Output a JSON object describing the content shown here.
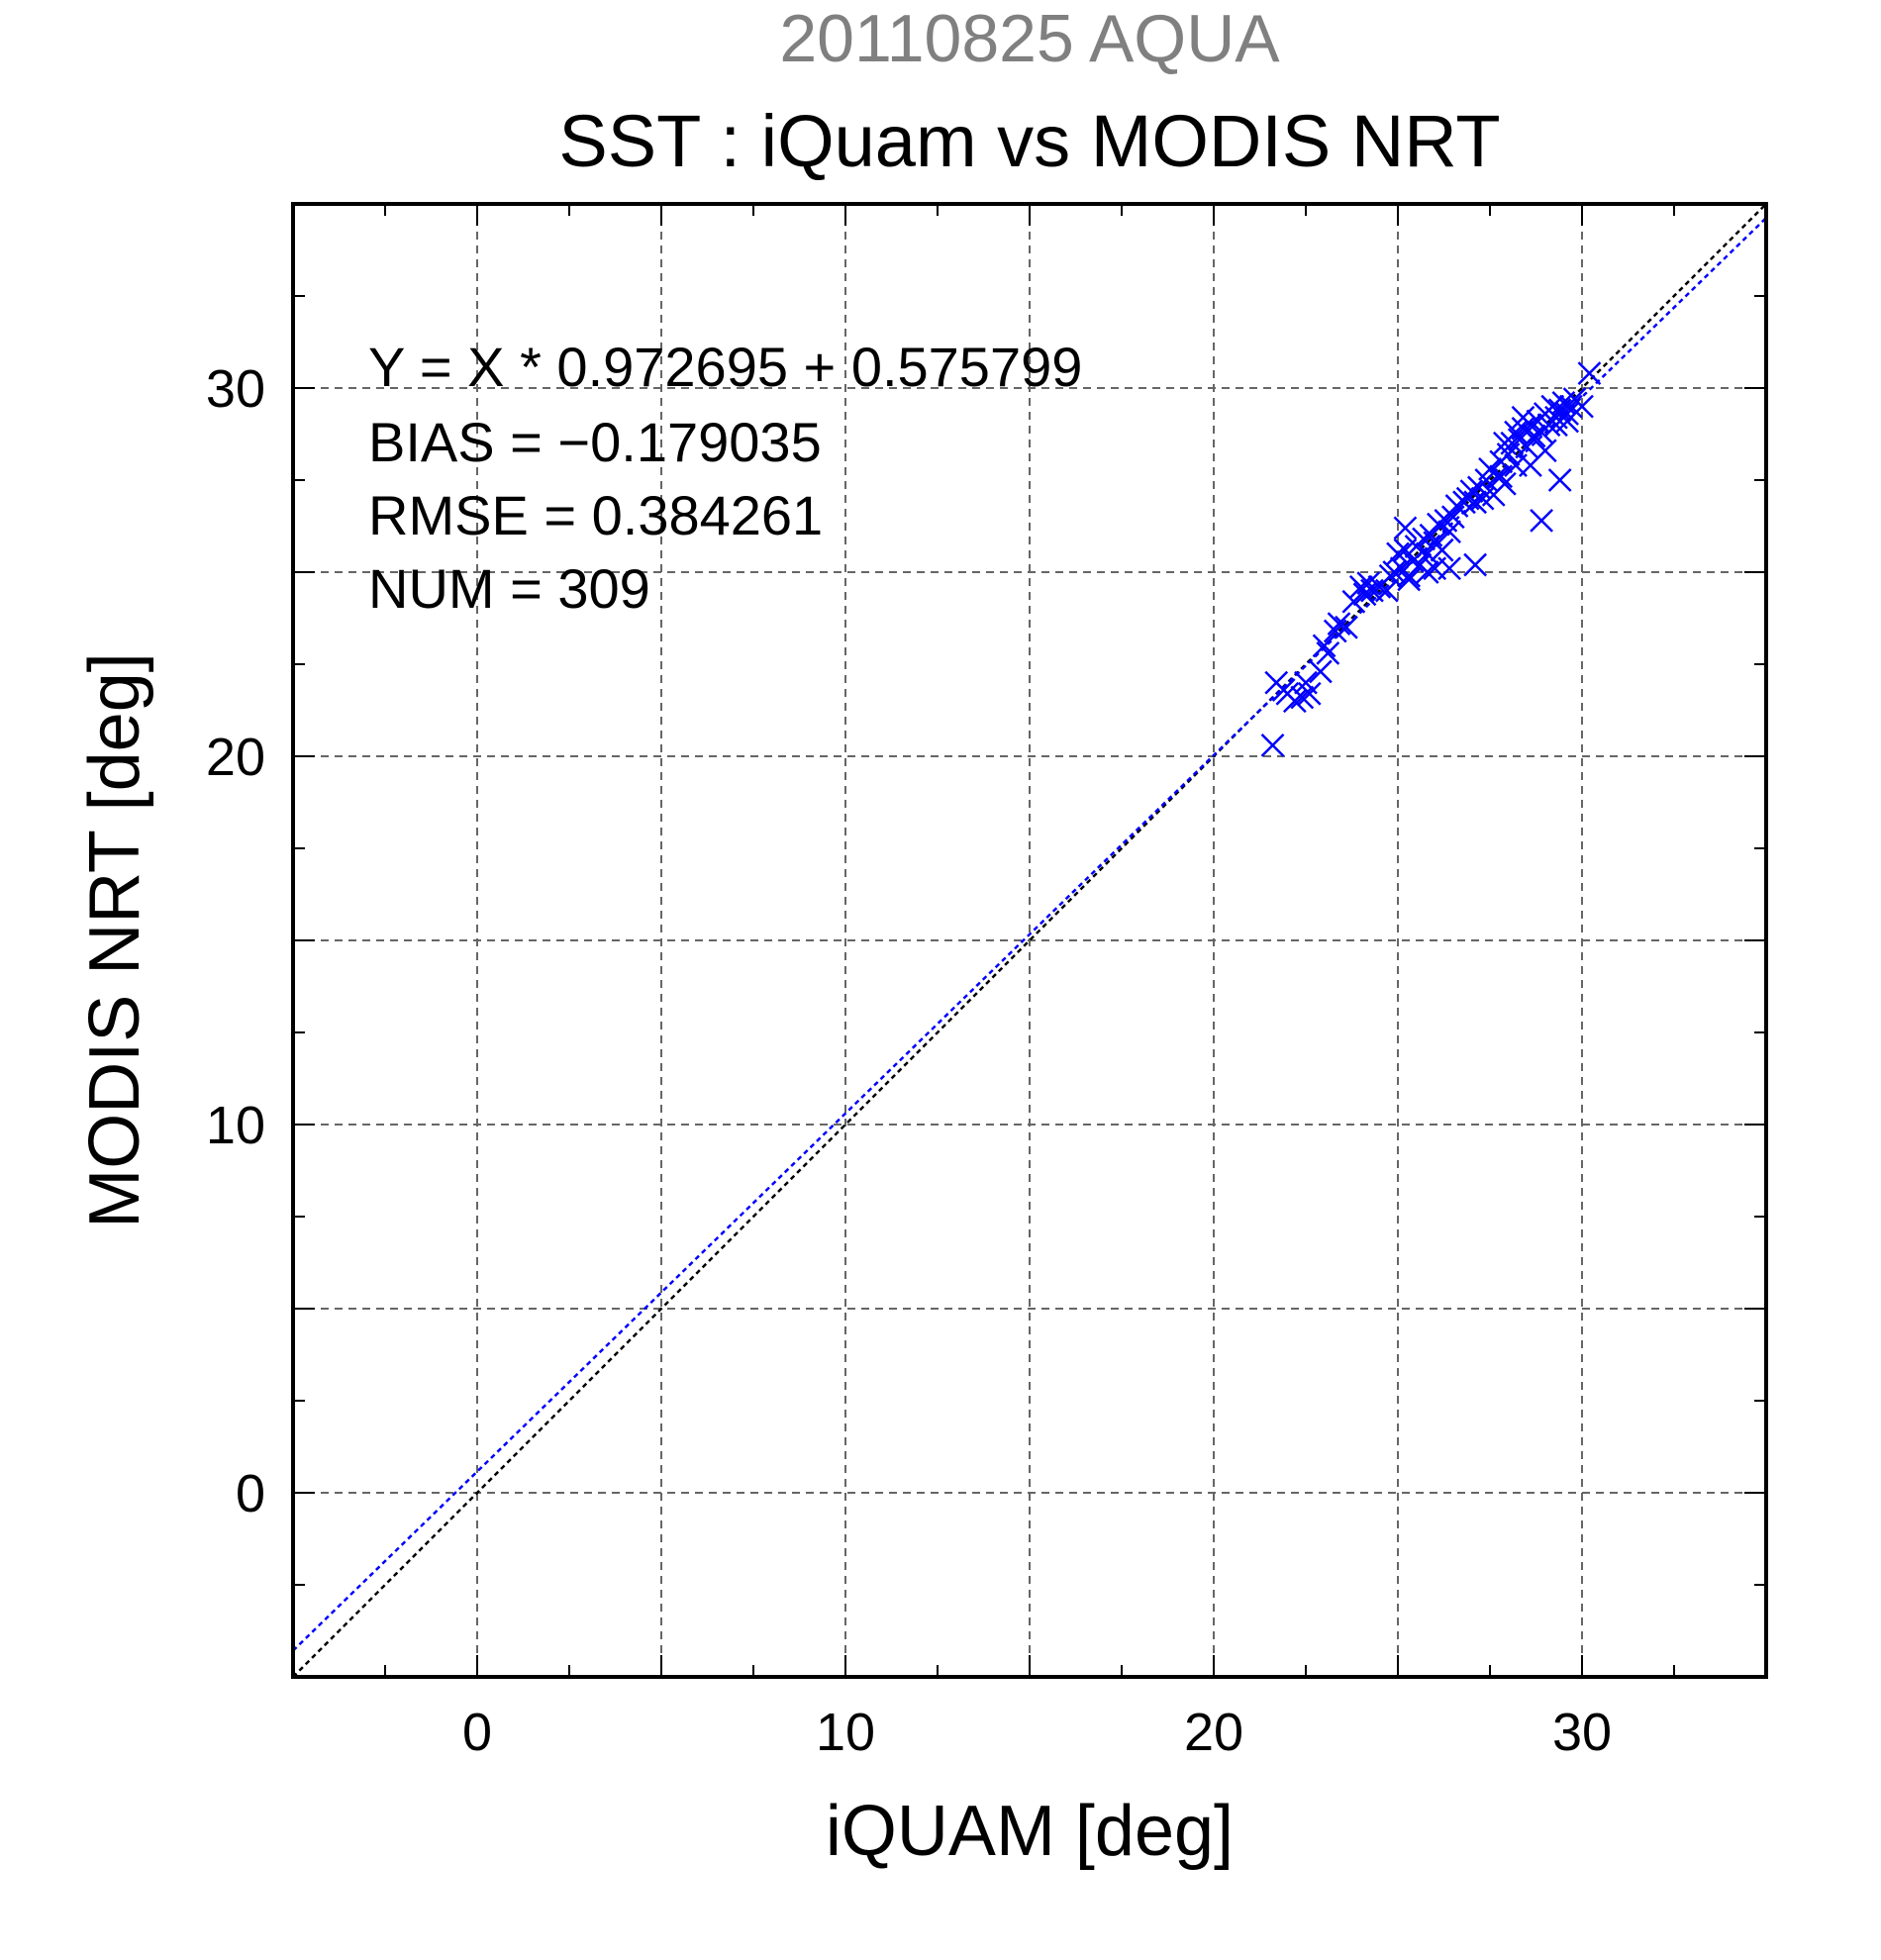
{
  "chart_data": {
    "type": "scatter",
    "supertitle": "20110825 AQUA",
    "title": "SST : iQuam vs MODIS NRT",
    "xlabel": "iQUAM [deg]",
    "ylabel": "MODIS NRT [deg]",
    "xlim": [
      -5,
      35
    ],
    "ylim": [
      -5,
      35
    ],
    "xticks": [
      0,
      10,
      20,
      30
    ],
    "yticks": [
      0,
      10,
      20,
      30
    ],
    "grid": true,
    "colors": {
      "supertitle": "#808080",
      "points": "#0000ff",
      "fit_line": "#0000ff",
      "identity_line": "#000000",
      "grid": "#666666"
    },
    "stats": {
      "fit": "Y = X * 0.972695 + 0.575799",
      "bias": "BIAS = −0.179035",
      "rmse": "RMSE = 0.384261",
      "num": "NUM = 309"
    },
    "fit_line": {
      "slope": 0.972695,
      "intercept": 0.575799
    },
    "identity_line": {
      "slope": 1,
      "intercept": 0
    },
    "marker": "x",
    "series": [
      {
        "marker": "x",
        "x": [
          21.6,
          21.7,
          21.9,
          22.0,
          22.2,
          22.4,
          22.5,
          22.6,
          22.9,
          23.0,
          23.1,
          23.3,
          23.4,
          23.6,
          23.8,
          24.0,
          24.1,
          24.2,
          24.3,
          24.5,
          24.7,
          24.8,
          24.9,
          25.0,
          25.1,
          25.2,
          25.3,
          25.4,
          25.5,
          25.6,
          25.7,
          25.8,
          25.9,
          26.0,
          26.1,
          26.2,
          26.3,
          26.4,
          26.5,
          26.6,
          26.8,
          26.9,
          27.0,
          27.1,
          27.2,
          27.3,
          27.4,
          27.5,
          27.6,
          27.7,
          27.8,
          27.9,
          28.0,
          28.1,
          28.2,
          28.3,
          28.4,
          28.5,
          28.6,
          28.7,
          28.8,
          28.9,
          29.0,
          29.1,
          29.2,
          29.3,
          29.4,
          29.5,
          29.6,
          29.7,
          29.8,
          30.0,
          30.2,
          25.3,
          25.8,
          26.4,
          27.1,
          27.8,
          28.6,
          29.3,
          28.9,
          29.4,
          26.0,
          25.2,
          27.9,
          28.4,
          29.0,
          29.6,
          28.2
        ],
        "y": [
          20.3,
          22.0,
          21.8,
          21.7,
          21.5,
          21.6,
          22.0,
          21.7,
          22.3,
          23.0,
          22.8,
          23.4,
          23.6,
          23.5,
          24.2,
          24.6,
          24.4,
          24.7,
          24.5,
          24.6,
          24.5,
          24.9,
          25.0,
          25.5,
          25.1,
          25.6,
          24.8,
          25.3,
          25.7,
          25.2,
          25.9,
          25.5,
          26.0,
          25.8,
          26.3,
          25.6,
          26.4,
          26.1,
          26.5,
          26.8,
          26.9,
          27.0,
          27.2,
          26.9,
          27.3,
          27.0,
          27.5,
          27.8,
          27.1,
          27.6,
          28.0,
          27.4,
          28.2,
          28.5,
          27.9,
          28.6,
          28.9,
          28.4,
          29.0,
          28.7,
          29.1,
          28.8,
          29.3,
          29.0,
          29.5,
          29.2,
          29.4,
          29.6,
          29.3,
          29.5,
          29.7,
          29.5,
          30.4,
          24.9,
          25.0,
          25.1,
          25.2,
          27.6,
          27.9,
          29.0,
          26.4,
          27.5,
          25.1,
          26.2,
          28.5,
          29.2,
          28.3,
          29.1,
          28.8
        ]
      }
    ]
  }
}
